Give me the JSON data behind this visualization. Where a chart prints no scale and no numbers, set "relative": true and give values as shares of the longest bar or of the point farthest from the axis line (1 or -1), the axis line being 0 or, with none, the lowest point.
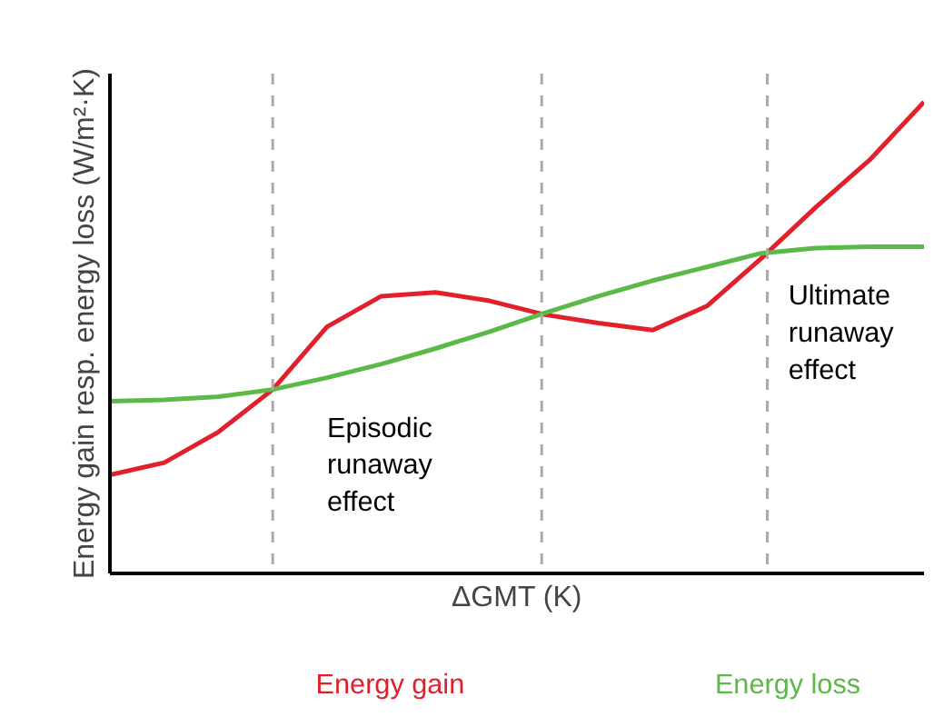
{
  "chart_data": {
    "type": "line",
    "relative": true,
    "xlabel": "ΔGMT (K)",
    "ylabel": "Energy gain resp. energy loss (W/m²·K)",
    "categories": [
      null,
      null,
      null,
      null,
      null,
      null,
      null,
      null,
      null,
      null,
      null,
      null,
      null,
      null,
      null,
      null
    ],
    "series": [
      {
        "name": "Energy gain",
        "color": "#e0202a",
        "values": [
          0.209,
          0.235,
          0.3,
          0.39,
          0.523,
          0.588,
          0.596,
          0.578,
          0.549,
          0.531,
          0.516,
          0.567,
          0.668,
          0.776,
          0.877,
          1.0
        ]
      },
      {
        "name": "Energy loss",
        "color": "#5cb848",
        "values": [
          0.365,
          0.368,
          0.375,
          0.39,
          0.415,
          0.444,
          0.477,
          0.513,
          0.552,
          0.588,
          0.621,
          0.65,
          0.679,
          0.69,
          0.693,
          0.693
        ]
      }
    ],
    "annotations": [
      "Episodic\nrunaway\neffect",
      "Ultimate\nrunaway\neffect"
    ],
    "line_style": "solid",
    "marker": "none"
  }
}
